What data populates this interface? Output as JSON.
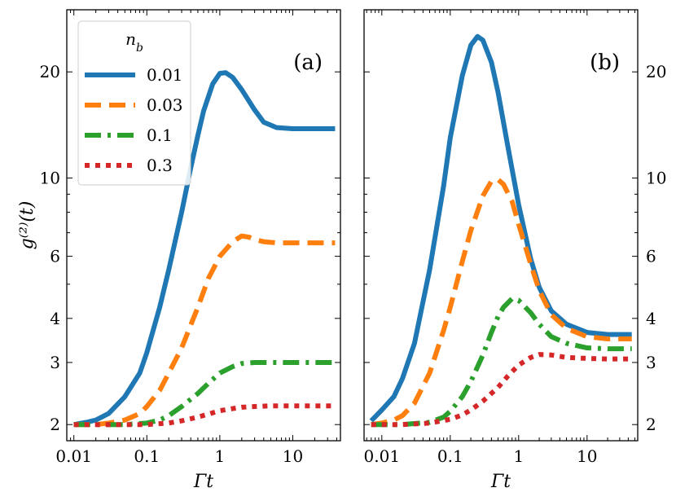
{
  "chart_data": [
    {
      "type": "line",
      "panel_label": "(a)",
      "xlabel": "Γt",
      "ylabel": "g⁽²⁾(t)",
      "xscale": "log",
      "yscale": "log",
      "xlim": [
        0.008,
        45
      ],
      "ylim": [
        1.8,
        30
      ],
      "xticks": [
        0.01,
        0.1,
        1,
        10
      ],
      "xtick_labels": [
        "0.01",
        "0.1",
        "1",
        "10"
      ],
      "yticks": [
        2,
        3,
        4,
        6,
        10,
        20
      ],
      "ytick_labels": [
        "2",
        "3",
        "4",
        "6",
        "10",
        "20"
      ],
      "legend": {
        "title": "n_b",
        "placement": "top-left"
      },
      "series": [
        {
          "name": "0.01",
          "color": "#1f77b4",
          "dash": "solid",
          "x": [
            0.01,
            0.015,
            0.02,
            0.03,
            0.05,
            0.08,
            0.1,
            0.15,
            0.2,
            0.3,
            0.4,
            0.5,
            0.6,
            0.8,
            1.0,
            1.2,
            1.5,
            2.0,
            3.0,
            4.0,
            6.0,
            10.0,
            20.0,
            38.0
          ],
          "y": [
            2.0,
            2.03,
            2.06,
            2.15,
            2.4,
            2.8,
            3.2,
            4.3,
            5.5,
            8.0,
            10.7,
            13.2,
            15.5,
            18.5,
            19.8,
            19.9,
            19.3,
            17.8,
            15.6,
            14.4,
            13.9,
            13.8,
            13.8,
            13.8
          ]
        },
        {
          "name": "0.03",
          "color": "#ff7f0e",
          "dash": "dashed",
          "x": [
            0.01,
            0.02,
            0.03,
            0.05,
            0.08,
            0.1,
            0.15,
            0.2,
            0.3,
            0.5,
            0.7,
            1.0,
            1.5,
            2.0,
            2.5,
            3.0,
            4.0,
            6.0,
            10.0,
            38.0
          ],
          "y": [
            2.0,
            2.0,
            2.02,
            2.06,
            2.15,
            2.25,
            2.5,
            2.8,
            3.3,
            4.3,
            5.2,
            6.0,
            6.6,
            6.85,
            6.8,
            6.7,
            6.6,
            6.55,
            6.55,
            6.55
          ]
        },
        {
          "name": "0.1",
          "color": "#2ca02c",
          "dash": "dashdot",
          "x": [
            0.01,
            0.03,
            0.05,
            0.1,
            0.15,
            0.2,
            0.3,
            0.5,
            0.7,
            1.0,
            1.5,
            2.0,
            3.0,
            5.0,
            10.0,
            38.0
          ],
          "y": [
            2.0,
            2.0,
            2.0,
            2.02,
            2.06,
            2.12,
            2.25,
            2.45,
            2.62,
            2.8,
            2.92,
            2.98,
            3.0,
            3.0,
            3.0,
            3.0
          ]
        },
        {
          "name": "0.3",
          "color": "#d62728",
          "dash": "dotted",
          "x": [
            0.01,
            0.05,
            0.1,
            0.2,
            0.3,
            0.5,
            0.8,
            1.0,
            1.5,
            2.0,
            3.0,
            5.0,
            10.0,
            38.0
          ],
          "y": [
            2.0,
            2.0,
            2.0,
            2.02,
            2.05,
            2.1,
            2.16,
            2.19,
            2.22,
            2.24,
            2.25,
            2.26,
            2.26,
            2.26
          ]
        }
      ]
    },
    {
      "type": "line",
      "panel_label": "(b)",
      "xlabel": "Γt",
      "ylabel": "",
      "xscale": "log",
      "yscale": "log",
      "xlim": [
        0.0055,
        55
      ],
      "ylim": [
        1.8,
        30
      ],
      "xticks": [
        0.01,
        0.1,
        1,
        10
      ],
      "xtick_labels": [
        "0.01",
        "0.1",
        "1",
        "10"
      ],
      "yticks": [
        2,
        3,
        4,
        6,
        10,
        20
      ],
      "ytick_labels": [
        "2",
        "3",
        "4",
        "6",
        "10",
        "20"
      ],
      "series": [
        {
          "name": "0.01",
          "color": "#1f77b4",
          "dash": "solid",
          "x": [
            0.007,
            0.01,
            0.015,
            0.02,
            0.03,
            0.05,
            0.08,
            0.1,
            0.15,
            0.2,
            0.25,
            0.3,
            0.4,
            0.5,
            0.7,
            1.0,
            1.5,
            2.0,
            3.0,
            5.0,
            10.0,
            20.0,
            45.0
          ],
          "y": [
            2.05,
            2.2,
            2.4,
            2.7,
            3.4,
            5.5,
            9.5,
            13.0,
            19.5,
            23.8,
            25.2,
            24.6,
            21.3,
            17.5,
            12.2,
            8.4,
            5.9,
            4.9,
            4.2,
            3.85,
            3.65,
            3.6,
            3.6
          ]
        },
        {
          "name": "0.03",
          "color": "#ff7f0e",
          "dash": "dashed",
          "x": [
            0.007,
            0.01,
            0.015,
            0.02,
            0.03,
            0.05,
            0.08,
            0.1,
            0.15,
            0.2,
            0.3,
            0.4,
            0.5,
            0.6,
            0.8,
            1.0,
            1.5,
            2.0,
            3.0,
            5.0,
            10.0,
            20.0,
            45.0
          ],
          "y": [
            2.0,
            2.02,
            2.06,
            2.12,
            2.3,
            2.8,
            3.7,
            4.3,
            5.8,
            7.1,
            8.9,
            9.8,
            9.9,
            9.6,
            8.6,
            7.4,
            5.7,
            4.8,
            4.1,
            3.75,
            3.55,
            3.5,
            3.5
          ]
        },
        {
          "name": "0.1",
          "color": "#2ca02c",
          "dash": "dashdot",
          "x": [
            0.007,
            0.02,
            0.05,
            0.08,
            0.1,
            0.15,
            0.2,
            0.3,
            0.4,
            0.5,
            0.6,
            0.8,
            1.0,
            1.5,
            2.0,
            3.0,
            5.0,
            10.0,
            20.0,
            45.0
          ],
          "y": [
            2.0,
            2.0,
            2.03,
            2.1,
            2.18,
            2.4,
            2.65,
            3.15,
            3.65,
            4.05,
            4.3,
            4.55,
            4.5,
            4.15,
            3.85,
            3.55,
            3.4,
            3.3,
            3.28,
            3.28
          ]
        },
        {
          "name": "0.3",
          "color": "#d62728",
          "dash": "dotted",
          "x": [
            0.007,
            0.02,
            0.05,
            0.1,
            0.15,
            0.2,
            0.3,
            0.5,
            0.7,
            1.0,
            1.5,
            2.0,
            3.0,
            5.0,
            10.0,
            20.0,
            45.0
          ],
          "y": [
            2.0,
            2.0,
            2.02,
            2.07,
            2.13,
            2.2,
            2.33,
            2.55,
            2.75,
            2.95,
            3.1,
            3.16,
            3.15,
            3.1,
            3.08,
            3.07,
            3.07
          ]
        }
      ]
    }
  ]
}
